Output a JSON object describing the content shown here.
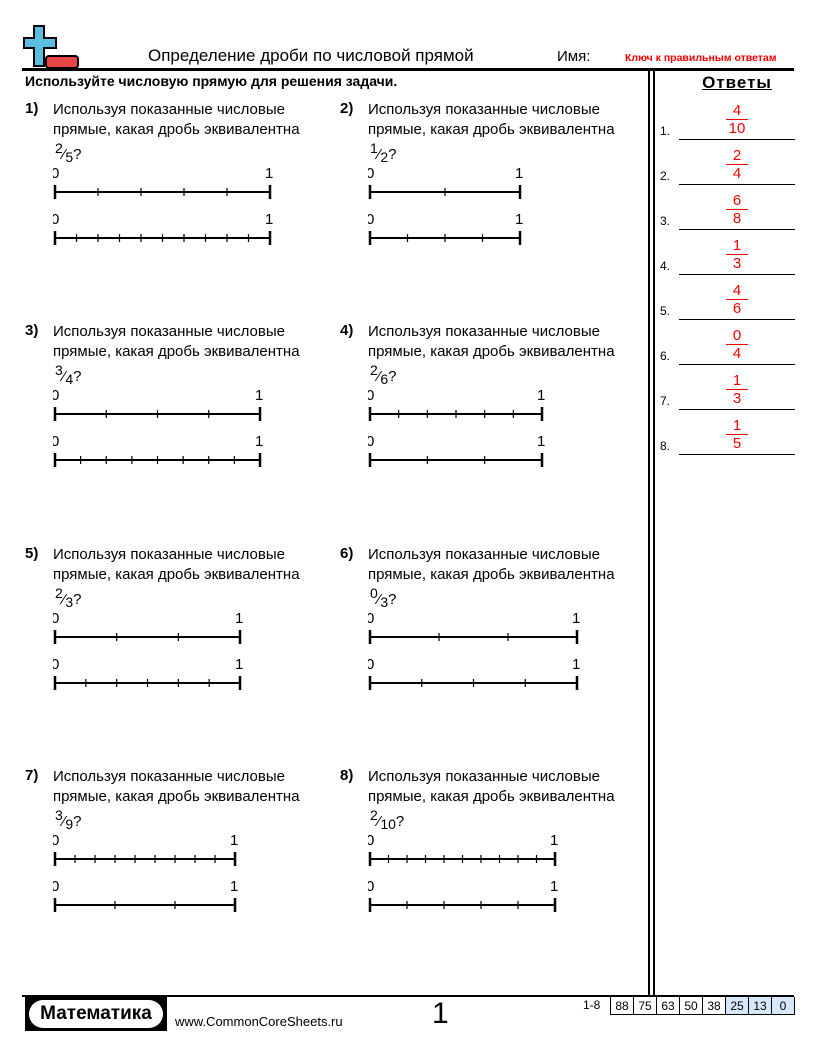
{
  "header": {
    "title": "Определение дроби по числовой прямой",
    "name_label": "Имя:",
    "key_label": "Ключ к правильным ответам",
    "instructions": "Используйте числовую прямую для решения задачи."
  },
  "colors": {
    "answer": "#ee0000",
    "logo_plus": "#5bbde0",
    "logo_minus": "#e84545",
    "score_highlight": "#d6e6fb"
  },
  "problems": [
    {
      "label": "1)",
      "text": "Используя показанные числовые прямые, какая дробь эквивалентна",
      "num": "2",
      "den": "5",
      "q": "?",
      "lines": [
        {
          "start": "0",
          "end": "1",
          "divisions": 5
        },
        {
          "start": "0",
          "end": "1",
          "divisions": 10
        }
      ]
    },
    {
      "label": "2)",
      "text": "Используя показанные числовые прямые, какая дробь эквивалентна",
      "num": "1",
      "den": "2",
      "q": "?",
      "lines": [
        {
          "start": "0",
          "end": "1",
          "divisions": 2
        },
        {
          "start": "0",
          "end": "1",
          "divisions": 4
        }
      ]
    },
    {
      "label": "3)",
      "text": "Используя показанные числовые прямые, какая дробь эквивалентна",
      "num": "3",
      "den": "4",
      "q": "?",
      "lines": [
        {
          "start": "0",
          "end": "1",
          "divisions": 4
        },
        {
          "start": "0",
          "end": "1",
          "divisions": 8
        }
      ]
    },
    {
      "label": "4)",
      "text": "Используя показанные числовые прямые, какая дробь эквивалентна",
      "num": "2",
      "den": "6",
      "q": "?",
      "lines": [
        {
          "start": "0",
          "end": "1",
          "divisions": 6
        },
        {
          "start": "0",
          "end": "1",
          "divisions": 3
        }
      ]
    },
    {
      "label": "5)",
      "text": "Используя показанные числовые прямые, какая дробь эквивалентна",
      "num": "2",
      "den": "3",
      "q": "?",
      "lines": [
        {
          "start": "0",
          "end": "1",
          "divisions": 3
        },
        {
          "start": "0",
          "end": "1",
          "divisions": 6
        }
      ]
    },
    {
      "label": "6)",
      "text": "Используя показанные числовые прямые, какая дробь эквивалентна",
      "num": "0",
      "den": "3",
      "q": "?",
      "lines": [
        {
          "start": "0",
          "end": "1",
          "divisions": 3
        },
        {
          "start": "0",
          "end": "1",
          "divisions": 4
        }
      ]
    },
    {
      "label": "7)",
      "text": "Используя показанные числовые прямые, какая дробь эквивалентна",
      "num": "3",
      "den": "9",
      "q": "?",
      "lines": [
        {
          "start": "0",
          "end": "1",
          "divisions": 9
        },
        {
          "start": "0",
          "end": "1",
          "divisions": 3
        }
      ]
    },
    {
      "label": "8)",
      "text": "Используя показанные числовые прямые, какая дробь эквивалентна",
      "num": "2",
      "den": "10",
      "q": "?",
      "lines": [
        {
          "start": "0",
          "end": "1",
          "divisions": 10
        },
        {
          "start": "0",
          "end": "1",
          "divisions": 5
        }
      ]
    }
  ],
  "answers": {
    "title": "Ответы",
    "items": [
      {
        "label": "1.",
        "num": "4",
        "den": "10"
      },
      {
        "label": "2.",
        "num": "2",
        "den": "4"
      },
      {
        "label": "3.",
        "num": "6",
        "den": "8"
      },
      {
        "label": "4.",
        "num": "1",
        "den": "3"
      },
      {
        "label": "5.",
        "num": "4",
        "den": "6"
      },
      {
        "label": "6.",
        "num": "0",
        "den": "4"
      },
      {
        "label": "7.",
        "num": "1",
        "den": "3"
      },
      {
        "label": "8.",
        "num": "1",
        "den": "5"
      }
    ]
  },
  "footer": {
    "brand": "Математика",
    "site": "www.CommonCoreSheets.ru",
    "page": "1",
    "range": "1-8",
    "scores": [
      "88",
      "75",
      "63",
      "50",
      "38",
      "25",
      "13",
      "0"
    ]
  }
}
